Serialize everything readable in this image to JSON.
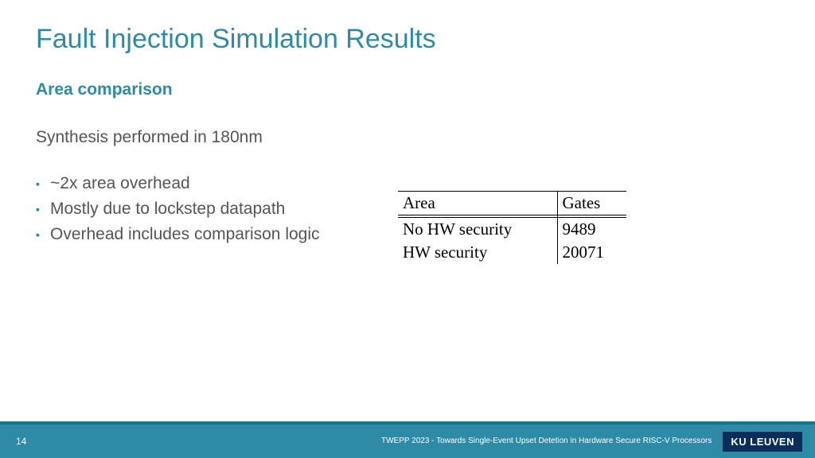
{
  "title": "Fault Injection Simulation Results",
  "subtitle": "Area comparison",
  "body_line": "Synthesis performed in 180nm",
  "bullets": [
    "~2x area overhead",
    "Mostly due to lockstep datapath",
    "Overhead includes comparison logic"
  ],
  "table": {
    "headers": [
      "Area",
      "Gates"
    ],
    "rows": [
      [
        "No HW security",
        "9489"
      ],
      [
        "HW security",
        "20071"
      ]
    ]
  },
  "footer": {
    "page": "14",
    "text": "TWEPP 2023 - Towards Single-Event Upset Detetion in Hardware Secure RISC-V Processors",
    "logo": "KU LEUVEN"
  }
}
